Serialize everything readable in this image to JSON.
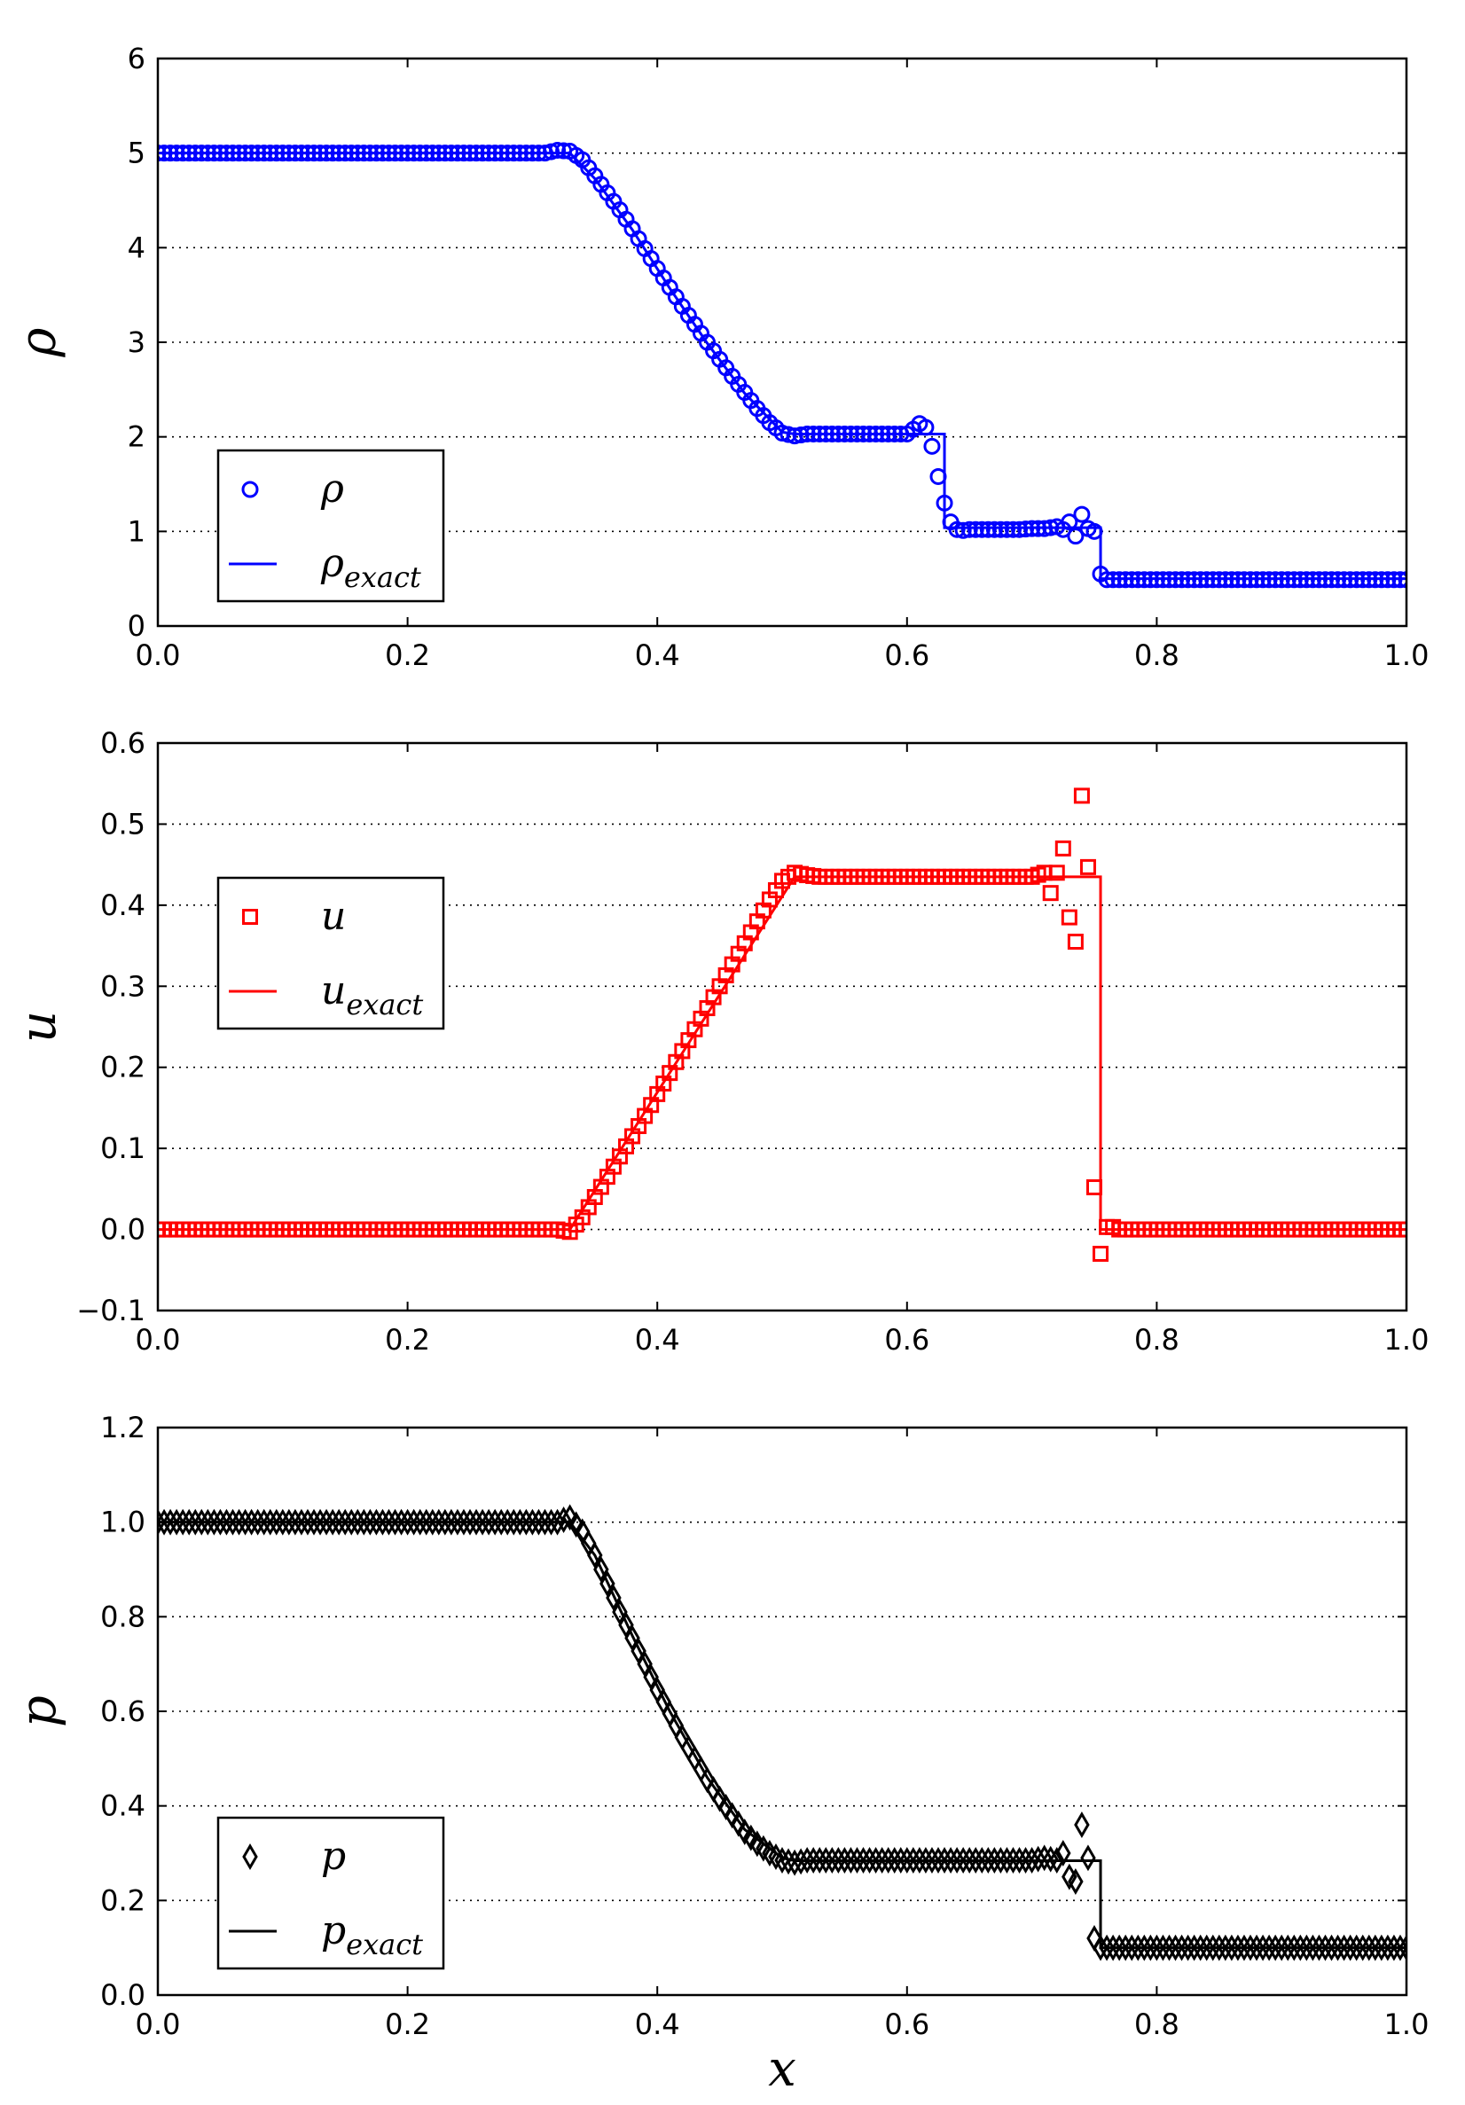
{
  "chart_data": [
    {
      "type": "line",
      "xlim": [
        0.0,
        1.0
      ],
      "ylim": [
        0,
        6
      ],
      "x_ticks": [
        "0.0",
        "0.2",
        "0.4",
        "0.6",
        "0.8",
        "1.0"
      ],
      "y_ticks": [
        "0",
        "1",
        "2",
        "3",
        "4",
        "5",
        "6"
      ],
      "ylabel": "ρ",
      "grid": "horizontal dotted",
      "legend_position": "lower-left",
      "series": [
        {
          "name": "ρ",
          "marker": "circle",
          "color": "#0000ff",
          "x": [
            0.0,
            0.3,
            0.31,
            0.32,
            0.33,
            0.34,
            0.35,
            0.36,
            0.37,
            0.38,
            0.39,
            0.4,
            0.41,
            0.42,
            0.43,
            0.44,
            0.45,
            0.46,
            0.47,
            0.48,
            0.49,
            0.5,
            0.51,
            0.52,
            0.53,
            0.54,
            0.55,
            0.56,
            0.57,
            0.58,
            0.59,
            0.6,
            0.605,
            0.61,
            0.615,
            0.62,
            0.625,
            0.63,
            0.635,
            0.64,
            0.645,
            0.65,
            0.66,
            0.67,
            0.68,
            0.69,
            0.7,
            0.71,
            0.72,
            0.725,
            0.73,
            0.735,
            0.74,
            0.745,
            0.75,
            0.755,
            0.76,
            0.77,
            0.8,
            0.9,
            1.0
          ],
          "y": [
            5.0,
            5.0,
            5.0,
            5.03,
            5.02,
            4.93,
            4.76,
            4.58,
            4.4,
            4.2,
            3.99,
            3.78,
            3.58,
            3.38,
            3.19,
            3.0,
            2.82,
            2.64,
            2.47,
            2.3,
            2.15,
            2.04,
            2.01,
            2.03,
            2.03,
            2.03,
            2.03,
            2.03,
            2.03,
            2.03,
            2.03,
            2.03,
            2.08,
            2.14,
            2.1,
            1.9,
            1.58,
            1.3,
            1.1,
            1.02,
            1.01,
            1.02,
            1.02,
            1.02,
            1.02,
            1.02,
            1.03,
            1.03,
            1.05,
            1.02,
            1.1,
            0.95,
            1.18,
            1.03,
            1.0,
            0.55,
            0.49,
            0.49,
            0.49,
            0.49,
            0.49
          ]
        },
        {
          "name": "ρexact",
          "color": "#0000ff",
          "x": [
            0.0,
            0.33,
            0.35,
            0.38,
            0.41,
            0.44,
            0.47,
            0.5,
            0.51,
            0.63,
            0.63,
            0.755,
            0.755,
            1.0
          ],
          "y": [
            5.0,
            5.0,
            4.73,
            4.19,
            3.57,
            2.99,
            2.46,
            2.05,
            2.03,
            2.03,
            1.04,
            1.04,
            0.5,
            0.5
          ]
        }
      ]
    },
    {
      "type": "line",
      "xlim": [
        0.0,
        1.0
      ],
      "ylim": [
        -0.1,
        0.6
      ],
      "x_ticks": [
        "0.0",
        "0.2",
        "0.4",
        "0.6",
        "0.8",
        "1.0"
      ],
      "y_ticks": [
        "−0.1",
        "0.0",
        "0.1",
        "0.2",
        "0.3",
        "0.4",
        "0.5",
        "0.6"
      ],
      "ylabel": "u",
      "grid": "horizontal dotted",
      "legend_position": "center-left",
      "series": [
        {
          "name": "u",
          "marker": "square",
          "color": "#ff0000",
          "x": [
            0.0,
            0.32,
            0.33,
            0.34,
            0.35,
            0.36,
            0.37,
            0.38,
            0.39,
            0.4,
            0.41,
            0.42,
            0.43,
            0.44,
            0.45,
            0.46,
            0.47,
            0.48,
            0.49,
            0.5,
            0.51,
            0.52,
            0.53,
            0.6,
            0.7,
            0.71,
            0.715,
            0.72,
            0.725,
            0.73,
            0.735,
            0.74,
            0.745,
            0.75,
            0.755,
            0.76,
            0.765,
            0.77,
            0.8,
            0.9,
            1.0
          ],
          "y": [
            0.0,
            0.0,
            -0.003,
            0.015,
            0.04,
            0.065,
            0.09,
            0.115,
            0.14,
            0.167,
            0.193,
            0.22,
            0.247,
            0.273,
            0.3,
            0.327,
            0.353,
            0.38,
            0.407,
            0.43,
            0.44,
            0.437,
            0.435,
            0.435,
            0.435,
            0.44,
            0.415,
            0.44,
            0.47,
            0.385,
            0.355,
            0.535,
            0.447,
            0.052,
            -0.03,
            0.003,
            0.003,
            0.0,
            0.0,
            0.0,
            0.0
          ]
        },
        {
          "name": "uexact",
          "color": "#ff0000",
          "x": [
            0.0,
            0.33,
            0.51,
            0.755,
            0.755,
            1.0
          ],
          "y": [
            0.0,
            0.0,
            0.435,
            0.435,
            0.0,
            0.0
          ]
        }
      ]
    },
    {
      "type": "line",
      "xlim": [
        0.0,
        1.0
      ],
      "ylim": [
        0.0,
        1.2
      ],
      "x_ticks": [
        "0.0",
        "0.2",
        "0.4",
        "0.6",
        "0.8",
        "1.0"
      ],
      "y_ticks": [
        "0.0",
        "0.2",
        "0.4",
        "0.6",
        "0.8",
        "1.0",
        "1.2"
      ],
      "ylabel": "p",
      "xlabel": "x",
      "grid": "horizontal dotted",
      "legend_position": "lower-left",
      "series": [
        {
          "name": "p",
          "marker": "diamond",
          "color": "#000000",
          "x": [
            0.0,
            0.32,
            0.33,
            0.34,
            0.35,
            0.36,
            0.37,
            0.38,
            0.39,
            0.4,
            0.41,
            0.42,
            0.43,
            0.44,
            0.45,
            0.46,
            0.47,
            0.48,
            0.49,
            0.5,
            0.51,
            0.52,
            0.6,
            0.7,
            0.71,
            0.72,
            0.725,
            0.73,
            0.735,
            0.74,
            0.745,
            0.75,
            0.755,
            0.76,
            0.77,
            0.8,
            0.9,
            1.0
          ],
          "y": [
            1.0,
            1.0,
            1.01,
            0.98,
            0.93,
            0.87,
            0.81,
            0.755,
            0.7,
            0.645,
            0.595,
            0.545,
            0.5,
            0.455,
            0.415,
            0.38,
            0.345,
            0.32,
            0.3,
            0.285,
            0.28,
            0.285,
            0.285,
            0.285,
            0.29,
            0.285,
            0.3,
            0.25,
            0.24,
            0.36,
            0.29,
            0.12,
            0.1,
            0.1,
            0.1,
            0.1,
            0.1,
            0.1
          ]
        },
        {
          "name": "pexact",
          "color": "#000000",
          "x": [
            0.0,
            0.33,
            0.35,
            0.38,
            0.41,
            0.44,
            0.47,
            0.5,
            0.51,
            0.755,
            0.755,
            1.0
          ],
          "y": [
            1.0,
            1.0,
            0.93,
            0.76,
            0.6,
            0.46,
            0.35,
            0.29,
            0.284,
            0.284,
            0.1,
            0.1
          ]
        }
      ]
    }
  ]
}
